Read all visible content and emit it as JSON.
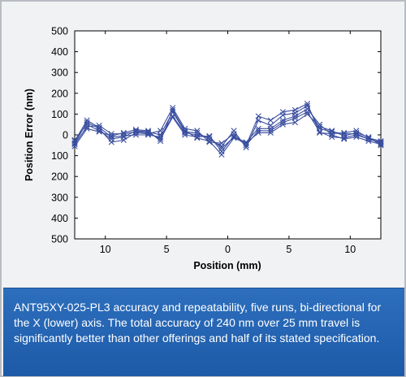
{
  "chart_data": {
    "type": "line",
    "ylabel": "Position Error (nm)",
    "xlabel": "Position (mm)",
    "x_ticks": [
      {
        "value": -10,
        "label": "10"
      },
      {
        "value": -5,
        "label": "5"
      },
      {
        "value": 0,
        "label": "0"
      },
      {
        "value": 5,
        "label": "5"
      },
      {
        "value": 10,
        "label": "10"
      }
    ],
    "y_ticks": [
      {
        "value": 500,
        "label": "500"
      },
      {
        "value": 400,
        "label": "400"
      },
      {
        "value": 300,
        "label": "300"
      },
      {
        "value": 200,
        "label": "200"
      },
      {
        "value": 100,
        "label": "100"
      },
      {
        "value": 0,
        "label": "0"
      },
      {
        "value": -100,
        "label": "100"
      },
      {
        "value": -200,
        "label": "200"
      },
      {
        "value": -300,
        "label": "300"
      },
      {
        "value": -400,
        "label": "400"
      },
      {
        "value": -500,
        "label": "500"
      }
    ],
    "xlim": [
      -12.5,
      12.5
    ],
    "ylim": [
      -500,
      500
    ],
    "grid": false,
    "line_color": "#3b4fa0",
    "x": [
      -12.5,
      -11.5,
      -10.5,
      -9.5,
      -8.5,
      -7.5,
      -6.5,
      -5.5,
      -4.5,
      -3.5,
      -2.5,
      -1.5,
      -0.5,
      0.5,
      1.5,
      2.5,
      3.5,
      4.5,
      5.5,
      6.5,
      7.5,
      8.5,
      9.5,
      10.5,
      11.5,
      12.5
    ],
    "series": [
      {
        "values": [
          -40,
          60,
          30,
          -35,
          -25,
          10,
          5,
          20,
          130,
          30,
          20,
          -35,
          -40,
          5,
          -50,
          90,
          70,
          110,
          120,
          150,
          10,
          5,
          10,
          20,
          -15,
          -30
        ]
      },
      {
        "values": [
          -25,
          50,
          20,
          -20,
          -10,
          20,
          15,
          0,
          110,
          15,
          10,
          -20,
          -55,
          20,
          -60,
          70,
          45,
          95,
          105,
          140,
          30,
          15,
          5,
          5,
          -20,
          -35
        ]
      },
      {
        "values": [
          -30,
          70,
          35,
          -10,
          -5,
          0,
          0,
          -10,
          90,
          10,
          0,
          -10,
          -65,
          -10,
          -35,
          30,
          30,
          70,
          90,
          125,
          50,
          0,
          -20,
          -10,
          -30,
          -45
        ]
      },
      {
        "values": [
          -45,
          40,
          45,
          5,
          5,
          15,
          10,
          -20,
          85,
          0,
          -10,
          -5,
          -80,
          -5,
          -50,
          20,
          20,
          60,
          80,
          110,
          15,
          -10,
          -15,
          0,
          -20,
          -40
        ]
      },
      {
        "values": [
          -55,
          30,
          15,
          -5,
          10,
          25,
          20,
          -30,
          120,
          20,
          -15,
          -30,
          -95,
          -15,
          -40,
          10,
          10,
          50,
          60,
          100,
          40,
          20,
          -5,
          10,
          -10,
          -50
        ]
      }
    ]
  },
  "caption": {
    "text": "ANT95XY-025-PL3 accuracy and repeatability, five runs, bi-directional for the X (lower) axis. The total accuracy of 240 nm over 25 mm travel is significantly better than other offerings and half of its stated specification."
  }
}
